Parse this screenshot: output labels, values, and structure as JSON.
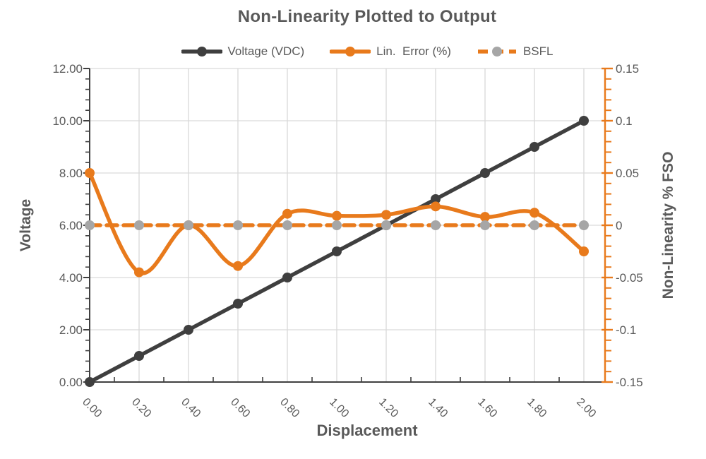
{
  "chart_data": {
    "type": "line",
    "title": "Non-Linearity Plotted to Output",
    "xlabel": "Displacement",
    "x": [
      0.0,
      0.2,
      0.4,
      0.6,
      0.8,
      1.0,
      1.2,
      1.4,
      1.6,
      1.8,
      2.0
    ],
    "x_tick_labels": [
      "0.00",
      "0.20",
      "0.40",
      "0.60",
      "0.80",
      "1.00",
      "1.20",
      "1.40",
      "1.60",
      "1.80",
      "2.00"
    ],
    "left_axis": {
      "title": "Voltage",
      "min": 0,
      "max": 12,
      "major": 2,
      "minor": 0.4,
      "tick_labels": [
        "0.00",
        "2.00",
        "4.00",
        "6.00",
        "8.00",
        "10.00",
        "12.00"
      ]
    },
    "right_axis": {
      "title": "Non-Linearity % FSO",
      "min": -0.15,
      "max": 0.15,
      "major": 0.05,
      "minor": 0.01,
      "tick_labels": [
        "-0.15",
        "-0.1",
        "-0.05",
        "0",
        "0.05",
        "0.1",
        "0.15"
      ]
    },
    "grid": true,
    "legend_position": "top",
    "series": [
      {
        "name": "Voltage (VDC)",
        "axis": "left",
        "smooth": false,
        "dashed": false,
        "color": "#3F3F3F",
        "marker_color": "#3F3F3F",
        "values": [
          0.0,
          1.0,
          2.0,
          3.0,
          4.0,
          5.0,
          6.0,
          7.0,
          8.0,
          9.0,
          10.0
        ]
      },
      {
        "name": "Lin.  Error (%)",
        "axis": "right",
        "smooth": true,
        "dashed": false,
        "color": "#E87A1C",
        "marker_color": "#E87A1C",
        "values": [
          0.05,
          -0.045,
          0.0,
          -0.039,
          0.011,
          0.009,
          0.01,
          0.018,
          0.008,
          0.012,
          -0.025
        ]
      },
      {
        "name": "BSFL",
        "axis": "right",
        "smooth": false,
        "dashed": true,
        "color": "#E87A1C",
        "marker_color": "#A6A6A6",
        "values": [
          0,
          0,
          0,
          0,
          0,
          0,
          0,
          0,
          0,
          0,
          0
        ]
      }
    ],
    "colors": {
      "grid": "#D9D9D9",
      "axis_dark": "#404040",
      "axis_orange": "#E87A1C",
      "text": "#595959",
      "background": "#FFFFFF"
    }
  },
  "legend": {
    "items": [
      {
        "line_color": "#3F3F3F",
        "marker_color": "#3F3F3F",
        "dash": null
      },
      {
        "line_color": "#E87A1C",
        "marker_color": "#E87A1C",
        "dash": null
      },
      {
        "line_color": "#E87A1C",
        "marker_color": "#A6A6A6",
        "dash": "14 8"
      }
    ]
  }
}
